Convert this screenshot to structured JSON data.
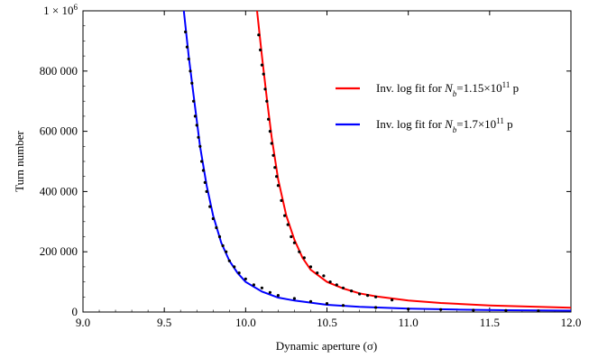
{
  "chart_data": {
    "type": "scatter",
    "xlabel": "Dynamic aperture (σ)",
    "ylabel": "Turn number",
    "xlim": [
      9.0,
      12.0
    ],
    "ylim": [
      0,
      1000000
    ],
    "x_ticks": [
      9.0,
      9.5,
      10.0,
      10.5,
      11.0,
      11.5,
      12.0
    ],
    "x_tick_labels": [
      "9.0",
      "9.5",
      "10.0",
      "10.5",
      "11.0",
      "11.5",
      "12.0"
    ],
    "y_ticks": [
      0,
      200000,
      400000,
      600000,
      800000,
      1000000
    ],
    "y_tick_labels": [
      "0",
      "200 000",
      "400 000",
      "600 000",
      "800 000",
      "1 × 10^6"
    ],
    "grid": false,
    "legend_position": "right",
    "series": [
      {
        "name": "Inv. log fit for N_b=1.15×10^11 p",
        "kind": "fit-line",
        "color": "#ff0000",
        "x": [
          10.07,
          10.1,
          10.13,
          10.16,
          10.2,
          10.25,
          10.3,
          10.35,
          10.4,
          10.5,
          10.6,
          10.7,
          10.8,
          11.0,
          11.2,
          11.5,
          11.8,
          12.0
        ],
        "y": [
          1000000,
          850000,
          710000,
          580000,
          440000,
          320000,
          240000,
          180000,
          140000,
          100000,
          78000,
          62000,
          52000,
          38000,
          30000,
          22000,
          17000,
          14000
        ]
      },
      {
        "name": "Inv. log fit for N_b=1.7×10^11 p",
        "kind": "fit-line",
        "color": "#0000ff",
        "x": [
          9.62,
          9.65,
          9.68,
          9.72,
          9.76,
          9.8,
          9.85,
          9.9,
          9.95,
          10.0,
          10.1,
          10.2,
          10.3,
          10.5,
          10.7,
          11.0,
          11.3,
          11.6,
          12.0
        ],
        "y": [
          1000000,
          850000,
          720000,
          550000,
          420000,
          320000,
          230000,
          170000,
          130000,
          100000,
          68000,
          48000,
          38000,
          24000,
          17000,
          11000,
          8000,
          6000,
          4500
        ]
      },
      {
        "name": "",
        "kind": "data-points",
        "color": "#000000",
        "x": [
          10.08,
          10.09,
          10.1,
          10.11,
          10.12,
          10.13,
          10.14,
          10.15,
          10.16,
          10.17,
          10.18,
          10.19,
          10.2,
          10.22,
          10.24,
          10.26,
          10.28,
          10.3,
          10.33,
          10.36,
          10.4,
          10.44,
          10.48,
          10.52,
          10.56,
          10.6,
          10.65,
          10.7,
          10.75,
          10.8,
          10.9
        ],
        "y": [
          920000,
          870000,
          820000,
          790000,
          740000,
          700000,
          640000,
          600000,
          560000,
          520000,
          480000,
          450000,
          420000,
          370000,
          320000,
          290000,
          250000,
          230000,
          200000,
          180000,
          150000,
          130000,
          120000,
          100000,
          90000,
          80000,
          70000,
          60000,
          55000,
          50000,
          40000
        ]
      },
      {
        "name": "",
        "kind": "data-points",
        "color": "#000000",
        "x": [
          9.63,
          9.64,
          9.65,
          9.66,
          9.67,
          9.68,
          9.69,
          9.7,
          9.71,
          9.72,
          9.73,
          9.74,
          9.75,
          9.76,
          9.78,
          9.8,
          9.82,
          9.84,
          9.86,
          9.88,
          9.9,
          9.93,
          9.96,
          10.0,
          10.05,
          10.1,
          10.15,
          10.2,
          10.3,
          10.4,
          10.5,
          10.6,
          10.8,
          11.0,
          11.2,
          11.4,
          11.6,
          11.8
        ],
        "y": [
          930000,
          880000,
          840000,
          800000,
          760000,
          700000,
          650000,
          620000,
          580000,
          550000,
          500000,
          470000,
          430000,
          400000,
          350000,
          310000,
          280000,
          250000,
          220000,
          200000,
          170000,
          150000,
          130000,
          110000,
          90000,
          80000,
          65000,
          55000,
          45000,
          35000,
          28000,
          22000,
          15000,
          10000,
          8000,
          6000,
          5000,
          4000
        ]
      }
    ]
  }
}
